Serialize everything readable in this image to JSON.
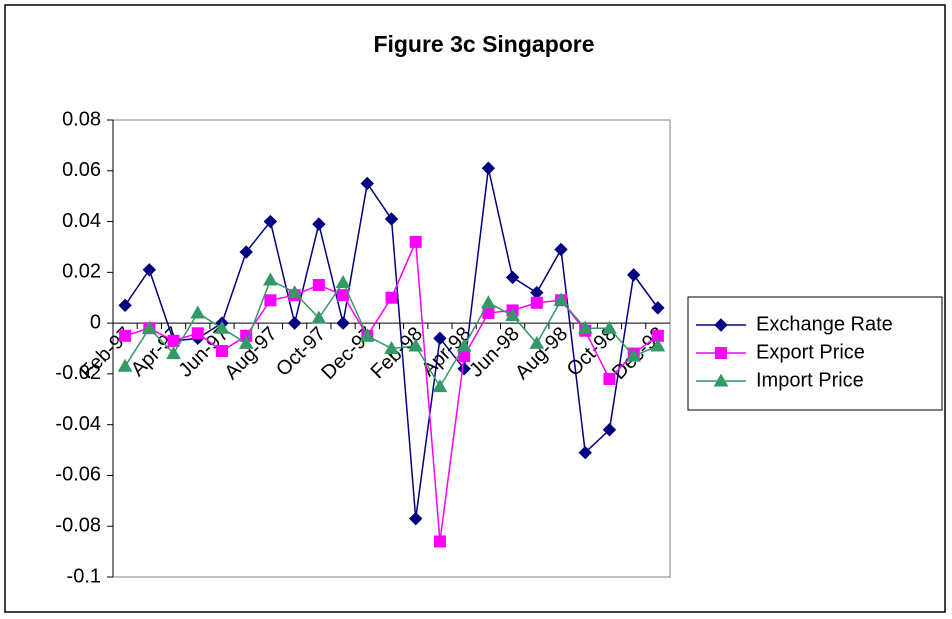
{
  "chart_data": {
    "type": "line",
    "title": "Figure 3c Singapore",
    "categories": [
      "Feb-97",
      null,
      "Apr-97",
      null,
      "Jun-97",
      null,
      "Aug-97",
      null,
      "Oct-97",
      null,
      "Dec-97",
      null,
      "Feb-98",
      null,
      "Apr-98",
      null,
      "Jun-98",
      null,
      "Aug-98",
      null,
      "Oct-98",
      null,
      "Dec-98"
    ],
    "series": [
      {
        "name": "Exchange Rate",
        "color": "#000080",
        "marker": "diamond",
        "values": [
          0.007,
          0.021,
          -0.007,
          -0.006,
          0.0,
          0.028,
          0.04,
          0.0,
          0.039,
          0.0,
          0.055,
          0.041,
          -0.077,
          -0.006,
          -0.018,
          0.061,
          0.018,
          0.012,
          0.029,
          -0.051,
          -0.042,
          0.019,
          0.006
        ]
      },
      {
        "name": "Export Price",
        "color": "#ff00ff",
        "marker": "square",
        "values": [
          -0.005,
          -0.002,
          -0.007,
          -0.004,
          -0.011,
          -0.005,
          0.009,
          0.011,
          0.015,
          0.011,
          -0.005,
          0.01,
          0.032,
          -0.086,
          -0.013,
          0.004,
          0.005,
          0.008,
          0.009,
          -0.003,
          -0.022,
          -0.012,
          -0.005
        ]
      },
      {
        "name": "Import Price",
        "color": "#339966",
        "marker": "triangle",
        "values": [
          -0.017,
          -0.002,
          -0.012,
          0.004,
          -0.002,
          -0.008,
          0.017,
          0.012,
          0.002,
          0.016,
          -0.005,
          -0.01,
          -0.009,
          -0.025,
          -0.009,
          0.008,
          0.003,
          -0.008,
          0.009,
          -0.002,
          -0.002,
          -0.013,
          -0.009
        ]
      }
    ],
    "ylim": [
      -0.1,
      0.08
    ],
    "yticks": [
      -0.1,
      -0.08,
      -0.06,
      -0.04,
      -0.02,
      0,
      0.02,
      0.04,
      0.06,
      0.08
    ],
    "grid": false,
    "legend": "right"
  }
}
